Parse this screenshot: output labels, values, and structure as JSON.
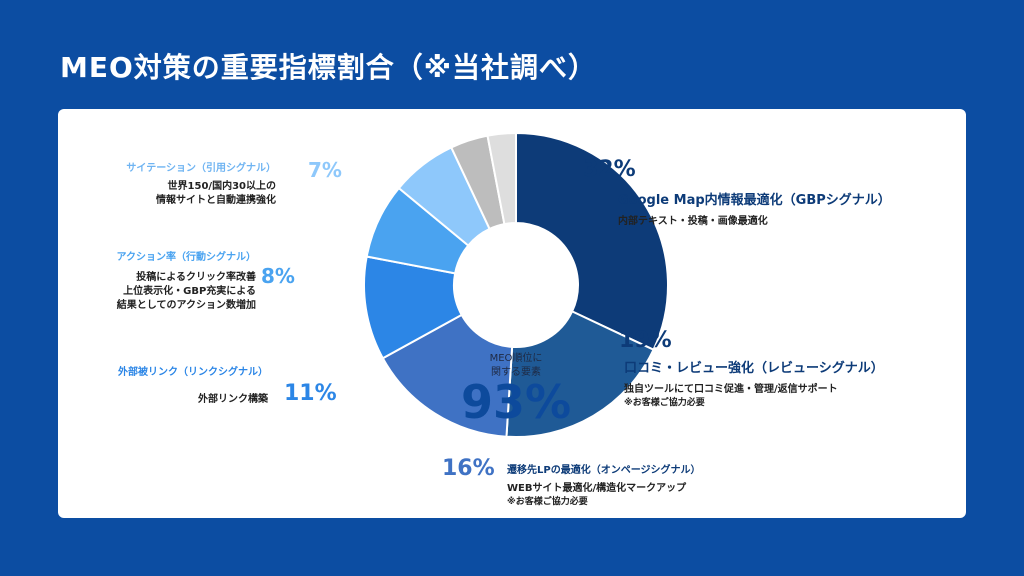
{
  "title": "MEO対策の重要指標割合（※当社調べ）",
  "center": {
    "label_line1": "MEO順位に",
    "label_line2": "関する要素",
    "value": "93%"
  },
  "chart_data": {
    "type": "pie",
    "categories": [
      "Google Map内情報最適化（GBPシグナル）",
      "口コミ・レビュー強化（レビューシグナル）",
      "遷移先LPの最適化（オンページシグナル）",
      "外部被リンク（リンクシグナル）",
      "アクション率（行動シグナル）",
      "サイテーション（引用シグナル）",
      "",
      ""
    ],
    "values": [
      32,
      19,
      16,
      11,
      8,
      7,
      4,
      3
    ],
    "labels": [
      "32%",
      "19%",
      "16%",
      "11%",
      "8%",
      "7%",
      "",
      ""
    ],
    "colors": [
      "#0d3b78",
      "#1f5a96",
      "#3f72c4",
      "#2c86e6",
      "#4aa3f0",
      "#8ec8fb",
      "#bdbdbd",
      "#dedede"
    ],
    "total_shown": "93%"
  },
  "annotations": [
    {
      "head": "Google Map内情報最適化（GBPシグナル）",
      "desc": [
        "内部テキスト・投稿・画像最適化"
      ],
      "note": ""
    },
    {
      "head": "口コミ・レビュー強化（レビューシグナル）",
      "desc": [
        "独自ツールにて口コミ促進・管理/返信サポート"
      ],
      "note": "※お客様ご協力必要"
    },
    {
      "head": "遷移先LPの最適化（オンページシグナル）",
      "desc": [
        "WEBサイト最適化/構造化マークアップ"
      ],
      "note": "※お客様ご協力必要"
    },
    {
      "head": "外部被リンク（リンクシグナル）",
      "desc": [
        "外部リンク構築"
      ],
      "note": ""
    },
    {
      "head": "アクション率（行動シグナル）",
      "desc": [
        "投稿によるクリック率改善",
        "上位表示化・GBP充実による",
        "結果としてのアクション数増加"
      ],
      "note": ""
    },
    {
      "head": "サイテーション（引用シグナル）",
      "desc": [
        "世界150/国内30以上の",
        "情報サイトと自動連携強化"
      ],
      "note": ""
    }
  ]
}
